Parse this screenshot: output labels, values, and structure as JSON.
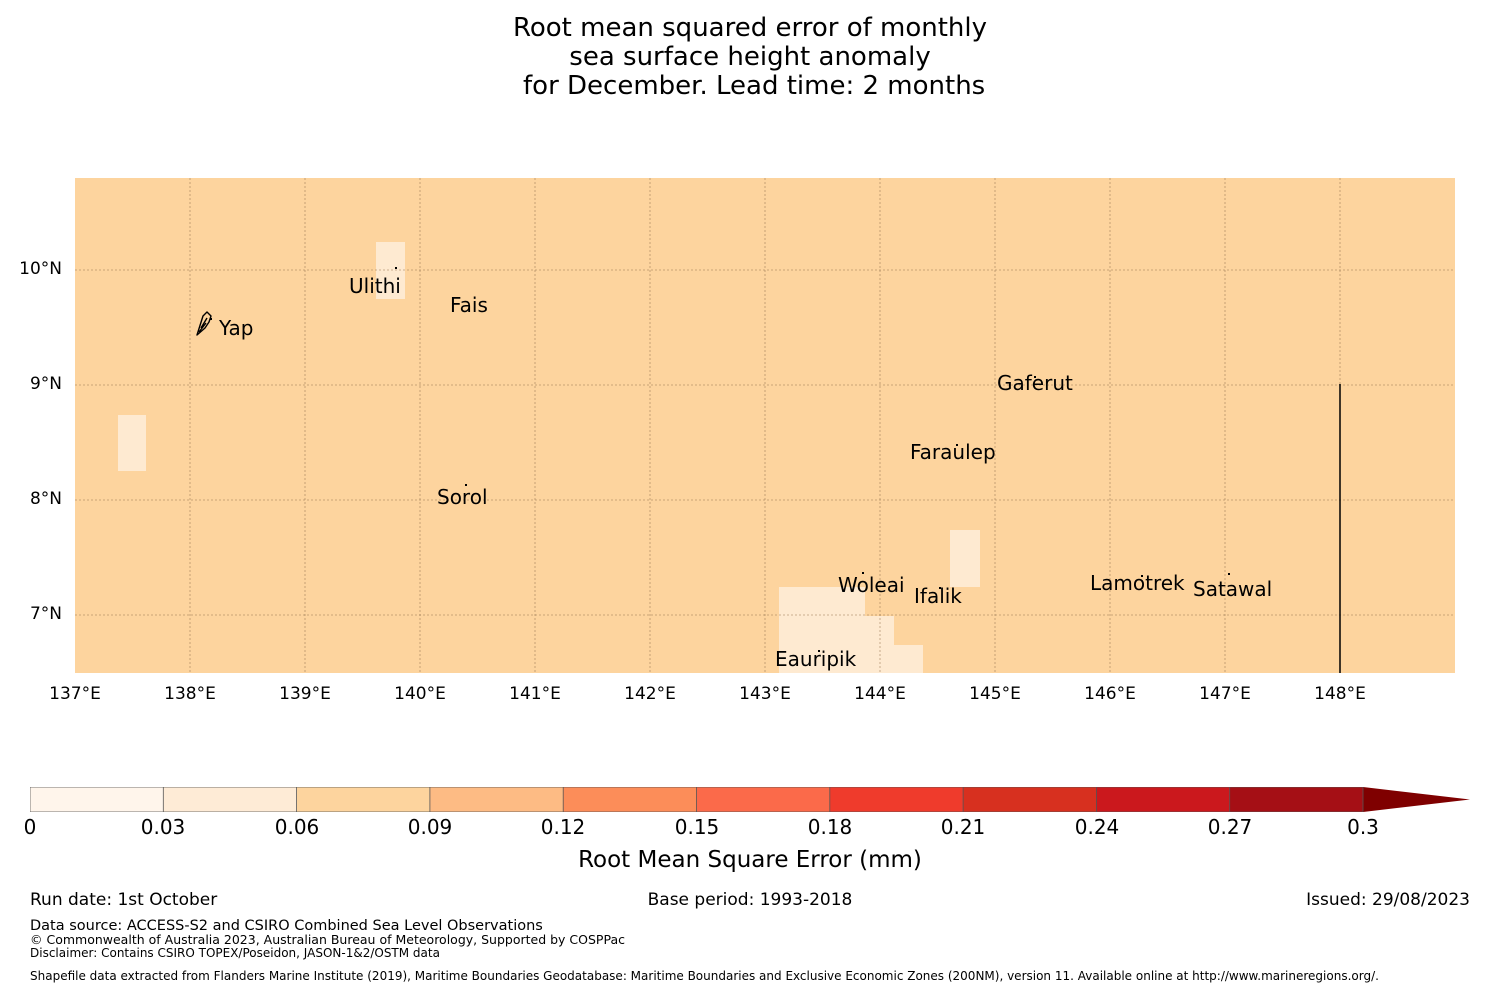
{
  "title": {
    "line1": "Root mean squared error of monthly",
    "line2": "sea surface height anomaly",
    "line3": " for December. Lead time: 2 months"
  },
  "map": {
    "background_color": "#fdd49e",
    "light_color": "#feead1",
    "latitude_ticks": [
      "10°N",
      "9°N",
      "8°N",
      "7°N"
    ],
    "longitude_ticks": [
      "137°E",
      "138°E",
      "139°E",
      "140°E",
      "141°E",
      "142°E",
      "143°E",
      "144°E",
      "145°E",
      "146°E",
      "147°E",
      "148°E"
    ],
    "islands": [
      {
        "name": "Yap"
      },
      {
        "name": "Ulithi"
      },
      {
        "name": "Fais"
      },
      {
        "name": "Gaferut"
      },
      {
        "name": "Faraulep"
      },
      {
        "name": "Sorol"
      },
      {
        "name": "Woleai"
      },
      {
        "name": "Ifalik"
      },
      {
        "name": "Lamotrek"
      },
      {
        "name": "Satawal"
      },
      {
        "name": "Eauripik"
      }
    ],
    "boundary_line_icon": "eez-boundary-line",
    "yap_icon": "yap-island-icon"
  },
  "colorbar": {
    "tick_labels": [
      "0",
      "0.03",
      "0.06",
      "0.09",
      "0.12",
      "0.15",
      "0.18",
      "0.21",
      "0.24",
      "0.27",
      "0.3"
    ],
    "colors": [
      "#fff5eb",
      "#feebd6",
      "#fdd49e",
      "#fdbb84",
      "#fc8d59",
      "#fb6a4a",
      "#ef3b2c",
      "#d7301f",
      "#cb181d",
      "#a50f15",
      "#7f0000"
    ],
    "label": "Root Mean Square Error (mm)"
  },
  "footer": {
    "run_date": "Run date: 1st October",
    "base_period": "Base period: 1993-2018",
    "issued": "Issued: 29/08/2023",
    "data_source": "Data source: ACCESS-S2 and CSIRO Combined Sea Level Observations",
    "copyright": "© Commonwealth of Australia 2023, Australian Bureau of Meteorology, Supported by COSPPac",
    "disclaimer": "Disclaimer: Contains CSIRO TOPEX/Poseidon, JASON-1&2/OSTM data",
    "shapefile": "Shapefile data extracted from Flanders Marine Institute (2019), Maritime Boundaries Geodatabase: Maritime Boundaries and Exclusive Economic Zones (200NM), version 11. Available online at http://www.marineregions.org/."
  }
}
